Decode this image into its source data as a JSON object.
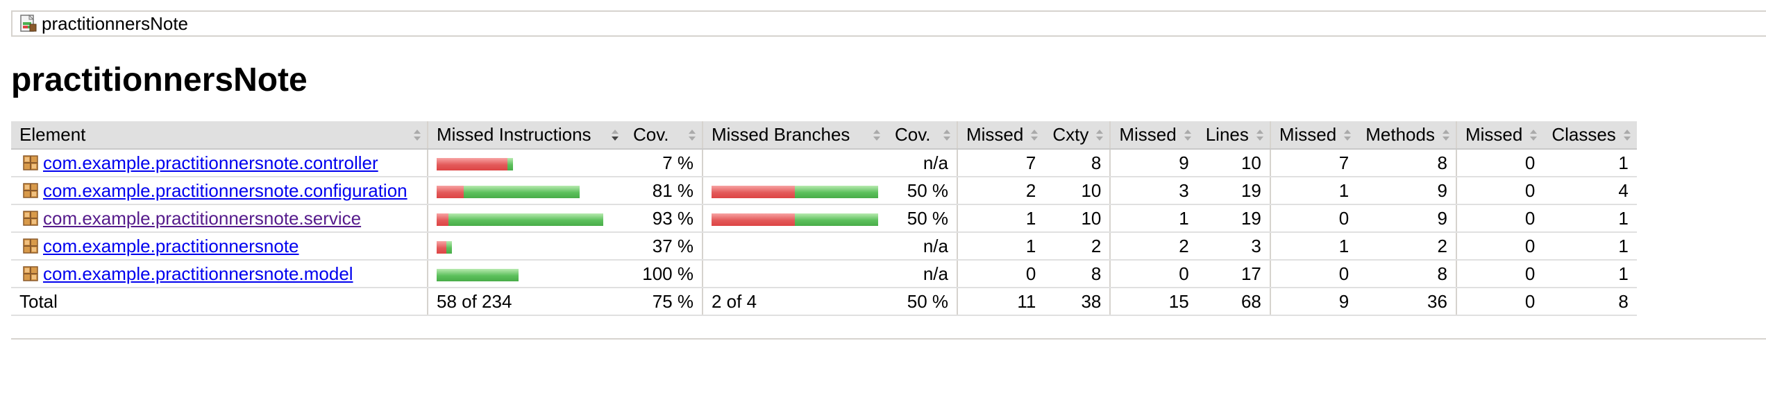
{
  "breadcrumb": {
    "icon": "report-icon",
    "label": "practitionnersNote"
  },
  "title": "practitionnersNote",
  "table": {
    "headers": {
      "element": "Element",
      "missed_instructions": "Missed Instructions",
      "cov_instructions": "Cov.",
      "missed_branches": "Missed Branches",
      "cov_branches": "Cov.",
      "missed_cxty": "Missed",
      "cxty": "Cxty",
      "missed_lines": "Missed",
      "lines": "Lines",
      "missed_methods": "Missed",
      "methods": "Methods",
      "missed_classes": "Missed",
      "classes": "Classes"
    },
    "rows": [
      {
        "name": "com.example.practitionnersnote.controller",
        "visited": false,
        "instr_bar_total": 0.46,
        "instr_cov_fraction": 0.07,
        "instr_cov": "7 %",
        "branch_bar_total": 0,
        "branch_cov_fraction": 0,
        "branch_cov": "n/a",
        "missed_cxty": "7",
        "cxty": "8",
        "missed_lines": "9",
        "lines": "10",
        "missed_methods": "7",
        "methods": "8",
        "missed_classes": "0",
        "classes": "1"
      },
      {
        "name": "com.example.practitionnersnote.configuration",
        "visited": false,
        "instr_bar_total": 0.86,
        "instr_cov_fraction": 0.81,
        "instr_cov": "81 %",
        "branch_bar_total": 1.0,
        "branch_cov_fraction": 0.5,
        "branch_cov": "50 %",
        "missed_cxty": "2",
        "cxty": "10",
        "missed_lines": "3",
        "lines": "19",
        "missed_methods": "1",
        "methods": "9",
        "missed_classes": "0",
        "classes": "4"
      },
      {
        "name": "com.example.practitionnersnote.service",
        "visited": true,
        "instr_bar_total": 1.0,
        "instr_cov_fraction": 0.93,
        "instr_cov": "93 %",
        "branch_bar_total": 1.0,
        "branch_cov_fraction": 0.5,
        "branch_cov": "50 %",
        "missed_cxty": "1",
        "cxty": "10",
        "missed_lines": "1",
        "lines": "19",
        "missed_methods": "0",
        "methods": "9",
        "missed_classes": "0",
        "classes": "1"
      },
      {
        "name": "com.example.practitionnersnote",
        "visited": false,
        "instr_bar_total": 0.09,
        "instr_cov_fraction": 0.37,
        "instr_cov": "37 %",
        "branch_bar_total": 0,
        "branch_cov_fraction": 0,
        "branch_cov": "n/a",
        "missed_cxty": "1",
        "cxty": "2",
        "missed_lines": "2",
        "lines": "3",
        "missed_methods": "1",
        "methods": "2",
        "missed_classes": "0",
        "classes": "1"
      },
      {
        "name": "com.example.practitionnersnote.model",
        "visited": false,
        "instr_bar_total": 0.49,
        "instr_cov_fraction": 1.0,
        "instr_cov": "100 %",
        "branch_bar_total": 0,
        "branch_cov_fraction": 0,
        "branch_cov": "n/a",
        "missed_cxty": "0",
        "cxty": "8",
        "missed_lines": "0",
        "lines": "17",
        "missed_methods": "0",
        "methods": "8",
        "missed_classes": "0",
        "classes": "1"
      }
    ],
    "total": {
      "label": "Total",
      "missed_instructions": "58 of 234",
      "instr_cov": "75 %",
      "missed_branches": "2 of 4",
      "branch_cov": "50 %",
      "missed_cxty": "11",
      "cxty": "38",
      "missed_lines": "15",
      "lines": "68",
      "missed_methods": "9",
      "methods": "36",
      "missed_classes": "0",
      "classes": "8"
    }
  },
  "colors": {
    "missed": "#e35a5a",
    "covered": "#5cc05c",
    "header_bg": "#e0e0e0",
    "link": "#0000ee",
    "visited_link": "#551a8b"
  }
}
